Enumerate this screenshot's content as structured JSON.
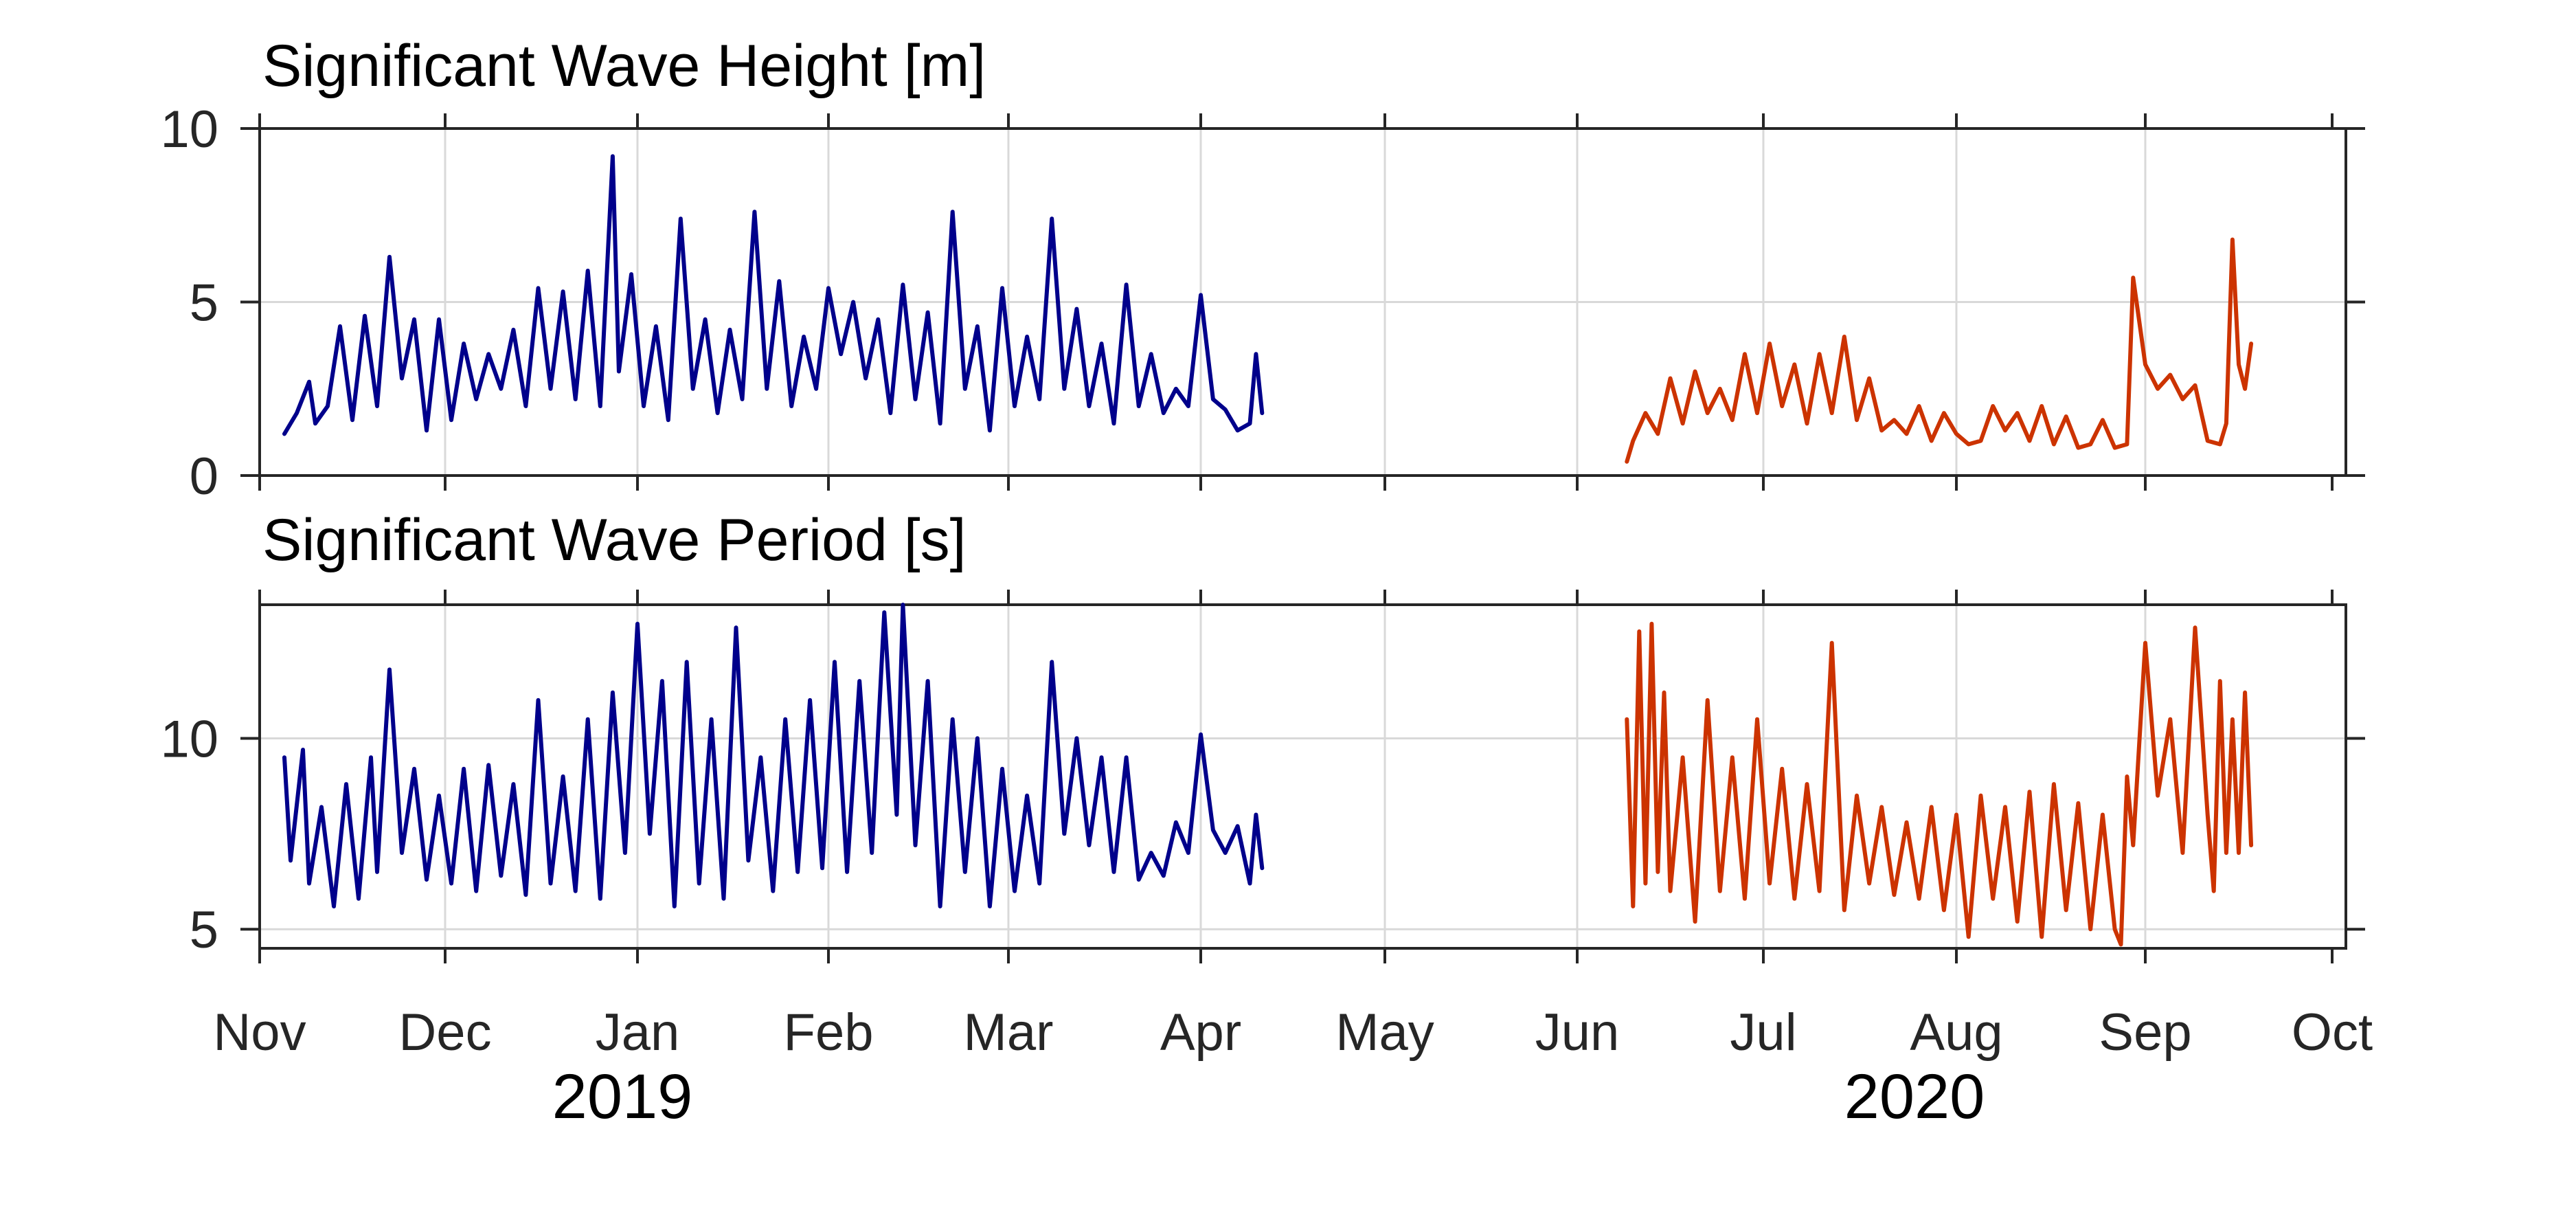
{
  "colors": {
    "series_2019": "#00008b",
    "series_2020": "#cc3300",
    "axis": "#262626",
    "grid": "#d9d9d9"
  },
  "x_ticks": [
    {
      "date": "2019-11-01",
      "label": "Nov"
    },
    {
      "date": "2019-12-01",
      "label": "Dec"
    },
    {
      "date": "2020-01-01",
      "label": "Jan"
    },
    {
      "date": "2020-02-01",
      "label": "Feb"
    },
    {
      "date": "2020-03-01",
      "label": "Mar"
    },
    {
      "date": "2020-04-01",
      "label": "Apr"
    },
    {
      "date": "2020-05-01",
      "label": "May"
    },
    {
      "date": "2020-06-01",
      "label": "Jun"
    },
    {
      "date": "2020-07-01",
      "label": "Jul"
    },
    {
      "date": "2020-08-01",
      "label": "Aug"
    },
    {
      "date": "2020-09-01",
      "label": "Sep"
    },
    {
      "date": "2020-10-01",
      "label": "Oct"
    }
  ],
  "year_labels": {
    "left": "2019",
    "right": "2020"
  },
  "chart_data": [
    {
      "type": "line",
      "title": "Significant Wave Height [m]",
      "xlabel": "",
      "ylabel": "",
      "xlim": [
        "2019-11-01",
        "2020-10-01"
      ],
      "ylim": [
        0,
        10
      ],
      "yticks": [
        0,
        5,
        10
      ],
      "grid": true,
      "series": [
        {
          "color": "#00008b",
          "x": [
            "2019-11-05",
            "2019-11-07",
            "2019-11-09",
            "2019-11-10",
            "2019-11-12",
            "2019-11-14",
            "2019-11-16",
            "2019-11-18",
            "2019-11-20",
            "2019-11-22",
            "2019-11-24",
            "2019-11-26",
            "2019-11-28",
            "2019-11-30",
            "2019-12-02",
            "2019-12-04",
            "2019-12-06",
            "2019-12-08",
            "2019-12-10",
            "2019-12-12",
            "2019-12-14",
            "2019-12-16",
            "2019-12-18",
            "2019-12-20",
            "2019-12-22",
            "2019-12-24",
            "2019-12-26",
            "2019-12-28",
            "2019-12-29",
            "2019-12-31",
            "2020-01-02",
            "2020-01-04",
            "2020-01-06",
            "2020-01-08",
            "2020-01-10",
            "2020-01-12",
            "2020-01-14",
            "2020-01-16",
            "2020-01-18",
            "2020-01-20",
            "2020-01-22",
            "2020-01-24",
            "2020-01-26",
            "2020-01-28",
            "2020-01-30",
            "2020-02-01",
            "2020-02-03",
            "2020-02-05",
            "2020-02-07",
            "2020-02-09",
            "2020-02-11",
            "2020-02-13",
            "2020-02-15",
            "2020-02-17",
            "2020-02-19",
            "2020-02-21",
            "2020-02-23",
            "2020-02-25",
            "2020-02-27",
            "2020-02-29",
            "2020-03-02",
            "2020-03-04",
            "2020-03-06",
            "2020-03-08",
            "2020-03-10",
            "2020-03-12",
            "2020-03-14",
            "2020-03-16",
            "2020-03-18",
            "2020-03-20",
            "2020-03-22",
            "2020-03-24",
            "2020-03-26",
            "2020-03-28",
            "2020-03-30",
            "2020-04-01",
            "2020-04-03",
            "2020-04-05",
            "2020-04-07",
            "2020-04-09",
            "2020-04-10",
            "2020-04-11"
          ],
          "y": [
            1.2,
            1.8,
            2.7,
            1.5,
            2.0,
            4.3,
            1.6,
            4.6,
            2.0,
            6.3,
            2.8,
            4.5,
            1.3,
            4.5,
            1.6,
            3.8,
            2.2,
            3.5,
            2.5,
            4.2,
            2.0,
            5.4,
            2.5,
            5.3,
            2.2,
            5.9,
            2.0,
            9.2,
            3.0,
            5.8,
            2.0,
            4.3,
            1.6,
            7.4,
            2.5,
            4.5,
            1.8,
            4.2,
            2.2,
            7.6,
            2.5,
            5.6,
            2.0,
            4.0,
            2.5,
            5.4,
            3.5,
            5.0,
            2.8,
            4.5,
            1.8,
            5.5,
            2.2,
            4.7,
            1.5,
            7.6,
            2.5,
            4.3,
            1.3,
            5.4,
            2.0,
            4.0,
            2.2,
            7.4,
            2.5,
            4.8,
            2.0,
            3.8,
            1.5,
            5.5,
            2.0,
            3.5,
            1.8,
            2.5,
            2.0,
            5.2,
            2.2,
            1.9,
            1.3,
            1.5,
            3.5,
            1.8
          ]
        },
        {
          "color": "#cc3300",
          "x": [
            "2020-06-09",
            "2020-06-10",
            "2020-06-12",
            "2020-06-14",
            "2020-06-16",
            "2020-06-18",
            "2020-06-20",
            "2020-06-22",
            "2020-06-24",
            "2020-06-26",
            "2020-06-28",
            "2020-06-30",
            "2020-07-02",
            "2020-07-04",
            "2020-07-06",
            "2020-07-08",
            "2020-07-10",
            "2020-07-12",
            "2020-07-14",
            "2020-07-16",
            "2020-07-18",
            "2020-07-20",
            "2020-07-22",
            "2020-07-24",
            "2020-07-26",
            "2020-07-28",
            "2020-07-30",
            "2020-08-01",
            "2020-08-03",
            "2020-08-05",
            "2020-08-07",
            "2020-08-09",
            "2020-08-11",
            "2020-08-13",
            "2020-08-15",
            "2020-08-17",
            "2020-08-19",
            "2020-08-21",
            "2020-08-23",
            "2020-08-25",
            "2020-08-27",
            "2020-08-29",
            "2020-08-30",
            "2020-09-01",
            "2020-09-03",
            "2020-09-05",
            "2020-09-07",
            "2020-09-09",
            "2020-09-11",
            "2020-09-13",
            "2020-09-14",
            "2020-09-15",
            "2020-09-16",
            "2020-09-17",
            "2020-09-18"
          ],
          "y": [
            0.4,
            1.0,
            1.8,
            1.2,
            2.8,
            1.5,
            3.0,
            1.8,
            2.5,
            1.6,
            3.5,
            1.8,
            3.8,
            2.0,
            3.2,
            1.5,
            3.5,
            1.8,
            4.0,
            1.6,
            2.8,
            1.3,
            1.6,
            1.2,
            2.0,
            1.0,
            1.8,
            1.2,
            0.9,
            1.0,
            2.0,
            1.3,
            1.8,
            1.0,
            2.0,
            0.9,
            1.7,
            0.8,
            0.9,
            1.6,
            0.8,
            0.9,
            5.7,
            3.2,
            2.5,
            2.9,
            2.2,
            2.6,
            1.0,
            0.9,
            1.5,
            6.8,
            3.2,
            2.5,
            3.8
          ]
        }
      ]
    },
    {
      "type": "line",
      "title": "Significant Wave Period [s]",
      "xlabel": "",
      "ylabel": "",
      "xlim": [
        "2019-11-01",
        "2020-10-01"
      ],
      "ylim": [
        4.5,
        13.5
      ],
      "yticks": [
        5,
        10
      ],
      "grid": true,
      "series": [
        {
          "color": "#00008b",
          "x": [
            "2019-11-05",
            "2019-11-06",
            "2019-11-08",
            "2019-11-09",
            "2019-11-11",
            "2019-11-13",
            "2019-11-15",
            "2019-11-17",
            "2019-11-19",
            "2019-11-20",
            "2019-11-22",
            "2019-11-24",
            "2019-11-26",
            "2019-11-28",
            "2019-11-30",
            "2019-12-02",
            "2019-12-04",
            "2019-12-06",
            "2019-12-08",
            "2019-12-10",
            "2019-12-12",
            "2019-12-14",
            "2019-12-16",
            "2019-12-18",
            "2019-12-20",
            "2019-12-22",
            "2019-12-24",
            "2019-12-26",
            "2019-12-28",
            "2019-12-30",
            "2020-01-01",
            "2020-01-03",
            "2020-01-05",
            "2020-01-07",
            "2020-01-09",
            "2020-01-11",
            "2020-01-13",
            "2020-01-15",
            "2020-01-17",
            "2020-01-19",
            "2020-01-21",
            "2020-01-23",
            "2020-01-25",
            "2020-01-27",
            "2020-01-29",
            "2020-01-31",
            "2020-02-02",
            "2020-02-04",
            "2020-02-06",
            "2020-02-08",
            "2020-02-10",
            "2020-02-12",
            "2020-02-13",
            "2020-02-15",
            "2020-02-17",
            "2020-02-19",
            "2020-02-21",
            "2020-02-23",
            "2020-02-25",
            "2020-02-27",
            "2020-02-29",
            "2020-03-02",
            "2020-03-04",
            "2020-03-06",
            "2020-03-08",
            "2020-03-10",
            "2020-03-12",
            "2020-03-14",
            "2020-03-16",
            "2020-03-18",
            "2020-03-20",
            "2020-03-22",
            "2020-03-24",
            "2020-03-26",
            "2020-03-28",
            "2020-03-30",
            "2020-04-01",
            "2020-04-03",
            "2020-04-05",
            "2020-04-07",
            "2020-04-09",
            "2020-04-10",
            "2020-04-11"
          ],
          "y": [
            9.5,
            6.8,
            9.7,
            6.2,
            8.2,
            5.6,
            8.8,
            5.8,
            9.5,
            6.5,
            11.8,
            7.0,
            9.2,
            6.3,
            8.5,
            6.2,
            9.2,
            6.0,
            9.3,
            6.4,
            8.8,
            5.9,
            11.0,
            6.2,
            9.0,
            6.0,
            10.5,
            5.8,
            11.2,
            7.0,
            13.0,
            7.5,
            11.5,
            5.6,
            12.0,
            6.2,
            10.5,
            5.8,
            12.9,
            6.8,
            9.5,
            6.0,
            10.5,
            6.5,
            11.0,
            6.6,
            12.0,
            6.5,
            11.5,
            7.0,
            13.3,
            8.0,
            13.5,
            7.2,
            11.5,
            5.6,
            10.5,
            6.5,
            10.0,
            5.6,
            9.2,
            6.0,
            8.5,
            6.2,
            12.0,
            7.5,
            10.0,
            7.2,
            9.5,
            6.5,
            9.5,
            6.3,
            7.0,
            6.4,
            7.8,
            7.0,
            10.1,
            7.6,
            7.0,
            7.7,
            6.2,
            8.0,
            6.6
          ]
        },
        {
          "color": "#cc3300",
          "x": [
            "2020-06-09",
            "2020-06-10",
            "2020-06-11",
            "2020-06-12",
            "2020-06-13",
            "2020-06-14",
            "2020-06-15",
            "2020-06-16",
            "2020-06-18",
            "2020-06-20",
            "2020-06-22",
            "2020-06-24",
            "2020-06-26",
            "2020-06-28",
            "2020-06-30",
            "2020-07-02",
            "2020-07-04",
            "2020-07-06",
            "2020-07-08",
            "2020-07-10",
            "2020-07-12",
            "2020-07-14",
            "2020-07-16",
            "2020-07-18",
            "2020-07-20",
            "2020-07-22",
            "2020-07-24",
            "2020-07-26",
            "2020-07-28",
            "2020-07-30",
            "2020-08-01",
            "2020-08-03",
            "2020-08-05",
            "2020-08-07",
            "2020-08-09",
            "2020-08-11",
            "2020-08-13",
            "2020-08-15",
            "2020-08-17",
            "2020-08-19",
            "2020-08-21",
            "2020-08-23",
            "2020-08-25",
            "2020-08-27",
            "2020-08-28",
            "2020-08-29",
            "2020-08-30",
            "2020-09-01",
            "2020-09-03",
            "2020-09-05",
            "2020-09-07",
            "2020-09-09",
            "2020-09-11",
            "2020-09-12",
            "2020-09-13",
            "2020-09-14",
            "2020-09-15",
            "2020-09-16",
            "2020-09-17",
            "2020-09-18"
          ],
          "y": [
            10.5,
            5.6,
            12.8,
            6.2,
            13.0,
            6.5,
            11.2,
            6.0,
            9.5,
            5.2,
            11.0,
            6.0,
            9.5,
            5.8,
            10.5,
            6.2,
            9.2,
            5.8,
            8.8,
            6.0,
            12.5,
            5.5,
            8.5,
            6.2,
            8.2,
            5.9,
            7.8,
            5.8,
            8.2,
            5.5,
            8.0,
            4.8,
            8.5,
            5.8,
            8.2,
            5.2,
            8.6,
            4.8,
            8.8,
            5.5,
            8.3,
            5.0,
            8.0,
            5.0,
            4.6,
            9.0,
            7.2,
            12.5,
            8.5,
            10.5,
            7.0,
            12.9,
            8.0,
            6.0,
            11.5,
            7.0,
            10.5,
            7.0,
            11.2,
            7.2
          ]
        }
      ]
    }
  ]
}
